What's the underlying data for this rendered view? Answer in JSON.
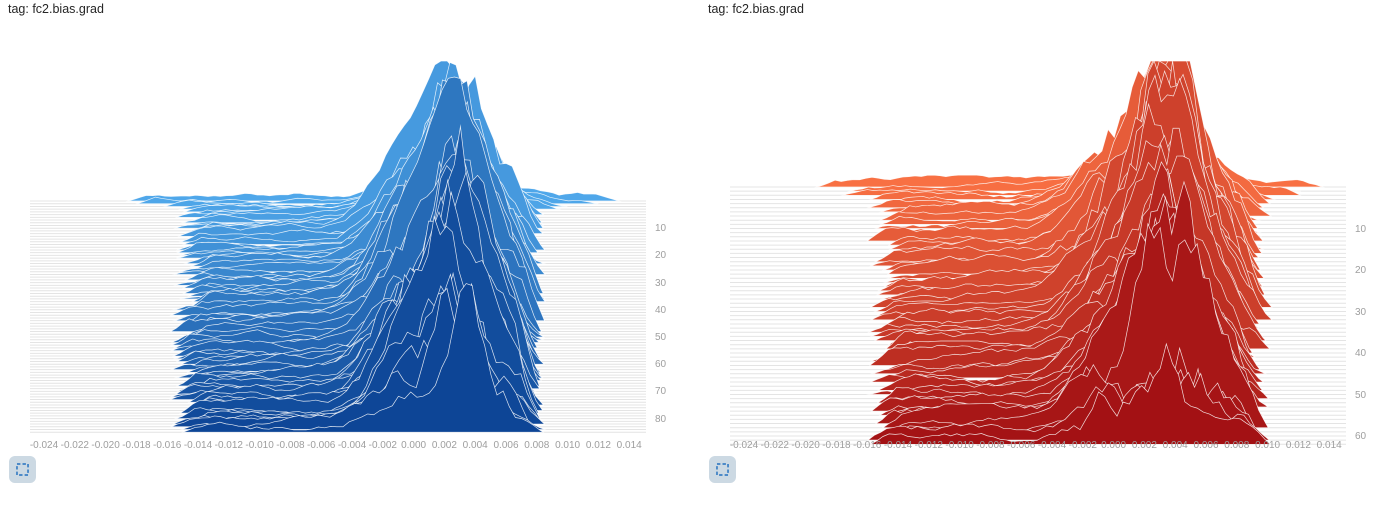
{
  "chart_data": [
    {
      "type": "ridgeline_histogram",
      "tag": "tag: fc2.bias.grad",
      "series_color_light": "#4fa7ea",
      "series_color_dark": "#0d4596",
      "seed": 11,
      "num_steps": 86,
      "x_axis_range": [
        -0.024,
        0.014
      ],
      "step_axis_range": [
        0,
        86
      ],
      "value_mass_range": [
        -0.015,
        0.008
      ],
      "x_tick_labels": [
        "-0.024",
        "-0.022",
        "-0.020",
        "-0.018",
        "-0.016",
        "-0.014",
        "-0.012",
        "-0.010",
        "-0.008",
        "-0.006",
        "-0.004",
        "-0.002",
        "0.000",
        "0.002",
        "0.004",
        "0.006",
        "0.008",
        "0.010",
        "0.012",
        "0.014"
      ],
      "y_step_labels": [
        10,
        20,
        30,
        40,
        50,
        60,
        70,
        80
      ],
      "peaks": [
        {
          "center": -0.0007,
          "sigma": 0.0019,
          "weight": 0.55
        },
        {
          "center": 0.0026,
          "sigma": 0.0016,
          "weight": 1.0
        },
        {
          "center": 0.005,
          "sigma": 0.0022,
          "weight": 0.45
        }
      ]
    },
    {
      "type": "ridgeline_histogram",
      "tag": "tag: fc2.bias.grad",
      "series_color_light": "#f87043",
      "series_color_dark": "#a31114",
      "seed": 23,
      "num_steps": 63,
      "x_axis_range": [
        -0.024,
        0.014
      ],
      "step_axis_range": [
        0,
        63
      ],
      "value_mass_range": [
        -0.015,
        0.0096
      ],
      "x_tick_labels": [
        "-0.024",
        "-0.022",
        "-0.020",
        "-0.018",
        "-0.016",
        "-0.014",
        "-0.012",
        "-0.010",
        "-0.008",
        "-0.006",
        "-0.004",
        "-0.002",
        "0.000",
        "0.002",
        "0.004",
        "0.006",
        "0.008",
        "0.010",
        "0.012",
        "0.014"
      ],
      "y_step_labels": [
        10,
        20,
        30,
        40,
        50,
        60
      ],
      "peaks": [
        {
          "center": -0.0005,
          "sigma": 0.002,
          "weight": 0.5
        },
        {
          "center": 0.0033,
          "sigma": 0.0017,
          "weight": 1.0
        },
        {
          "center": 0.0052,
          "sigma": 0.0024,
          "weight": 0.55
        }
      ]
    }
  ],
  "controls": {
    "expand_icon": "dashed-fullscreen-square"
  }
}
